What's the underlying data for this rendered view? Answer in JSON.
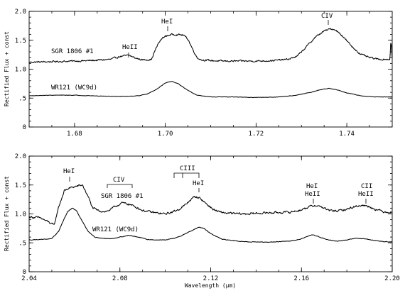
{
  "chart_data": [
    {
      "type": "line",
      "xlim": [
        1.67,
        1.75
      ],
      "ylim": [
        0,
        2.0
      ],
      "xticks": [
        1.68,
        1.7,
        1.72,
        1.74
      ],
      "xtick_labels": [
        "1.68",
        "1.70",
        "1.72",
        "1.74"
      ],
      "yticks": [
        0,
        0.5,
        1.0,
        1.5,
        2.0
      ],
      "ytick_labels": [
        "0",
        ".5",
        "1.0",
        "1.5",
        "2.0"
      ],
      "xlabel": "",
      "ylabel": "Rectified Flux + const",
      "series": [
        {
          "name": "SGR 1806 #1",
          "noise": 0.012,
          "x": [
            1.67,
            1.675,
            1.68,
            1.684,
            1.688,
            1.69,
            1.692,
            1.6935,
            1.695,
            1.697,
            1.6975,
            1.6985,
            1.6995,
            1.7005,
            1.7015,
            1.7025,
            1.704,
            1.705,
            1.706,
            1.707,
            1.708,
            1.712,
            1.716,
            1.72,
            1.724,
            1.727,
            1.729,
            1.731,
            1.733,
            1.735,
            1.7365,
            1.7375,
            1.739,
            1.741,
            1.743,
            1.745,
            1.747,
            1.7495,
            1.7497,
            1.75
          ],
          "y": [
            1.12,
            1.13,
            1.14,
            1.15,
            1.17,
            1.22,
            1.24,
            1.19,
            1.16,
            1.17,
            1.28,
            1.45,
            1.55,
            1.58,
            1.6,
            1.6,
            1.59,
            1.52,
            1.35,
            1.2,
            1.16,
            1.14,
            1.14,
            1.14,
            1.15,
            1.17,
            1.22,
            1.38,
            1.55,
            1.66,
            1.7,
            1.68,
            1.58,
            1.4,
            1.26,
            1.2,
            1.17,
            1.17,
            1.52,
            1.18
          ]
        },
        {
          "name": "WR121 (WC9d)",
          "noise": 0.003,
          "x": [
            1.67,
            1.675,
            1.68,
            1.684,
            1.688,
            1.691,
            1.694,
            1.696,
            1.698,
            1.7,
            1.7015,
            1.703,
            1.705,
            1.707,
            1.71,
            1.715,
            1.72,
            1.725,
            1.729,
            1.732,
            1.7345,
            1.736,
            1.7375,
            1.74,
            1.743,
            1.746,
            1.75
          ],
          "y": [
            0.54,
            0.55,
            0.55,
            0.54,
            0.53,
            0.53,
            0.54,
            0.57,
            0.65,
            0.76,
            0.79,
            0.74,
            0.63,
            0.55,
            0.52,
            0.52,
            0.51,
            0.52,
            0.55,
            0.6,
            0.65,
            0.67,
            0.65,
            0.59,
            0.54,
            0.52,
            0.52
          ]
        }
      ],
      "annotations": [
        {
          "text": "HeII",
          "x": 1.6925,
          "y": 1.24
        },
        {
          "text": "HeI",
          "x": 1.6995,
          "y": 1.55
        },
        {
          "text": "CIV",
          "x": 1.7365,
          "y": 1.71
        }
      ]
    },
    {
      "type": "line",
      "xlim": [
        2.04,
        2.2
      ],
      "ylim": [
        0,
        2.0
      ],
      "xticks": [
        2.04,
        2.08,
        2.12,
        2.16,
        2.2
      ],
      "xtick_labels": [
        "2.04",
        "2.08",
        "2.12",
        "2.16",
        "2.20"
      ],
      "yticks": [
        0,
        0.5,
        1.0,
        1.5,
        2.0
      ],
      "ytick_labels": [
        "0",
        ".5",
        "1.0",
        "1.5",
        "2.0"
      ],
      "xlabel": "Wavelength (μm)",
      "ylabel": "Rectified Flux + const",
      "series": [
        {
          "name": "SGR 1806 #1",
          "noise": 0.015,
          "x": [
            2.04,
            2.045,
            2.049,
            2.051,
            2.053,
            2.0555,
            2.058,
            2.061,
            2.0635,
            2.066,
            2.068,
            2.071,
            2.074,
            2.076,
            2.078,
            2.081,
            2.084,
            2.087,
            2.09,
            2.094,
            2.097,
            2.1,
            2.103,
            2.106,
            2.109,
            2.111,
            2.113,
            2.115,
            2.118,
            2.121,
            2.124,
            2.128,
            2.135,
            2.145,
            2.155,
            2.16,
            2.163,
            2.166,
            2.169,
            2.172,
            2.176,
            2.18,
            2.183,
            2.186,
            2.189,
            2.192,
            2.196,
            2.2
          ],
          "y": [
            0.95,
            0.93,
            0.85,
            0.8,
            1.12,
            1.4,
            1.45,
            1.48,
            1.5,
            1.3,
            1.1,
            1.05,
            1.04,
            1.08,
            1.13,
            1.19,
            1.17,
            1.12,
            1.06,
            1.03,
            1.01,
            1.0,
            1.03,
            1.08,
            1.16,
            1.24,
            1.3,
            1.28,
            1.18,
            1.08,
            1.03,
            1.01,
            1.0,
            1.02,
            1.03,
            1.07,
            1.12,
            1.15,
            1.12,
            1.06,
            1.05,
            1.08,
            1.12,
            1.15,
            1.14,
            1.09,
            1.04,
            1.03
          ]
        },
        {
          "name": "WR121 (WC9d)",
          "noise": 0.004,
          "x": [
            2.04,
            2.045,
            2.05,
            2.053,
            2.055,
            2.057,
            2.059,
            2.061,
            2.063,
            2.066,
            2.069,
            2.072,
            2.076,
            2.08,
            2.084,
            2.088,
            2.092,
            2.096,
            2.1,
            2.104,
            2.107,
            2.11,
            2.113,
            2.115,
            2.117,
            2.12,
            2.125,
            2.135,
            2.145,
            2.155,
            2.16,
            2.163,
            2.165,
            2.168,
            2.172,
            2.176,
            2.18,
            2.184,
            2.188,
            2.192,
            2.196,
            2.2
          ],
          "y": [
            0.55,
            0.56,
            0.57,
            0.7,
            0.88,
            1.04,
            1.1,
            1.05,
            0.9,
            0.7,
            0.6,
            0.58,
            0.57,
            0.6,
            0.63,
            0.6,
            0.56,
            0.55,
            0.55,
            0.58,
            0.62,
            0.68,
            0.74,
            0.77,
            0.75,
            0.66,
            0.56,
            0.52,
            0.51,
            0.53,
            0.57,
            0.62,
            0.64,
            0.6,
            0.55,
            0.53,
            0.55,
            0.58,
            0.57,
            0.54,
            0.52,
            0.52
          ]
        }
      ],
      "annotations": [
        {
          "text": "HeI",
          "x": 2.059,
          "y": 1.5
        },
        {
          "text": "CIV",
          "x": 2.08,
          "y": 1.26
        },
        {
          "text": "CIII",
          "x": 2.109,
          "y": 1.49
        },
        {
          "text": "HeI",
          "x": 2.1145,
          "y": 1.32
        },
        {
          "text": "HeI",
          "x": 2.165,
          "y": 1.17
        },
        {
          "text": "HeII",
          "x": 2.165,
          "y": 1.17
        },
        {
          "text": "CII",
          "x": 2.189,
          "y": 1.17
        },
        {
          "text": "HeII",
          "x": 2.189,
          "y": 1.17
        }
      ]
    }
  ]
}
